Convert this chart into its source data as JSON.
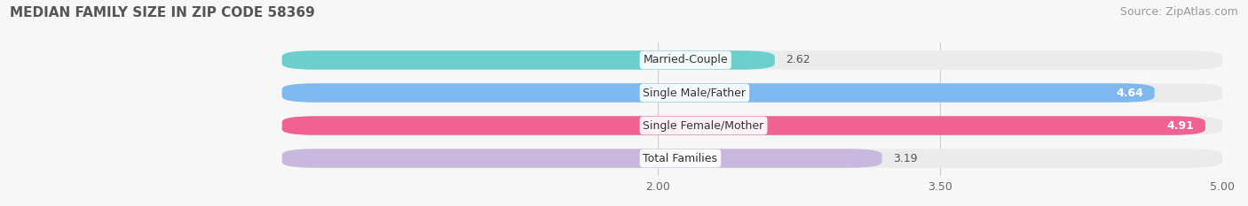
{
  "title": "MEDIAN FAMILY SIZE IN ZIP CODE 58369",
  "source": "Source: ZipAtlas.com",
  "categories": [
    "Married-Couple",
    "Single Male/Father",
    "Single Female/Mother",
    "Total Families"
  ],
  "values": [
    2.62,
    4.64,
    4.91,
    3.19
  ],
  "bar_colors": [
    "#6dcfcc",
    "#7eb8ef",
    "#f06292",
    "#c9b8de"
  ],
  "xlim": [
    2.0,
    5.0
  ],
  "xstart": 0.0,
  "xticks": [
    2.0,
    3.5,
    5.0
  ],
  "xtick_labels": [
    "2.00",
    "3.50",
    "5.00"
  ],
  "label_fontsize": 9,
  "value_fontsize": 9,
  "title_fontsize": 11,
  "source_fontsize": 9,
  "background_color": "#f7f7f7",
  "bar_bg_color": "#ebebeb"
}
